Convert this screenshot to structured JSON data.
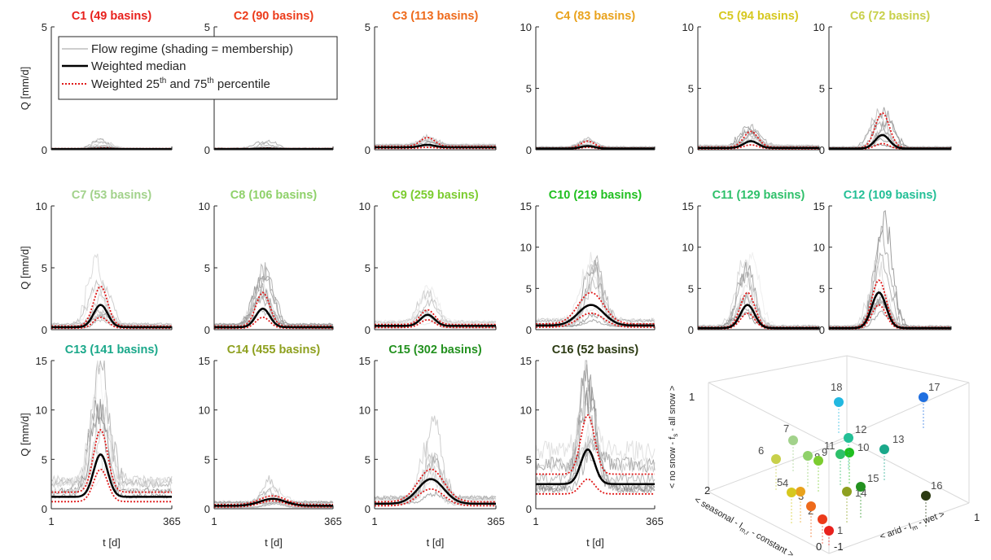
{
  "chart_data": {
    "type": "line",
    "legend": {
      "regime": "Flow regime (shading = membership)",
      "median": "Weighted median",
      "pct_a": "Weighted 25",
      "pct_sup1": "th",
      "pct_b": " and 75",
      "pct_sup2": "th",
      "pct_c": " percentile",
      "placement": "inside top of C1-C2 panels"
    },
    "ylabel": "Q [mm/d]",
    "xlabel": "t [d]",
    "x_ticks": [
      "1",
      "365"
    ],
    "xlim": [
      1,
      365
    ],
    "panels": [
      {
        "title": "C1 (49 basins)",
        "color": "#e8211d",
        "ymax": 5,
        "peak_day": 160,
        "median_peak": 0.05,
        "median_base": 0.03,
        "p25_peak": 0.03,
        "p75_peak": 0.08
      },
      {
        "title": "C2 (90 basins)",
        "color": "#ec3b1a",
        "ymax": 5,
        "peak_day": 160,
        "median_peak": 0.05,
        "median_base": 0.03,
        "p25_peak": 0.03,
        "p75_peak": 0.07
      },
      {
        "title": "C3 (113 basins)",
        "color": "#ee6a1b",
        "ymax": 5,
        "peak_day": 160,
        "median_peak": 0.2,
        "median_base": 0.1,
        "p25_peak": 0.1,
        "p75_peak": 0.5
      },
      {
        "title": "C4 (83 basins)",
        "color": "#e9a21c",
        "ymax": 10,
        "peak_day": 160,
        "median_peak": 0.3,
        "median_base": 0.1,
        "p25_peak": 0.2,
        "p75_peak": 0.7
      },
      {
        "title": "C5 (94 basins)",
        "color": "#d6c81f",
        "ymax": 10,
        "peak_day": 160,
        "median_peak": 0.7,
        "median_base": 0.15,
        "p25_peak": 0.4,
        "p75_peak": 1.5
      },
      {
        "title": "C6 (72 basins)",
        "color": "#c8d04a",
        "ymax": 10,
        "peak_day": 160,
        "median_peak": 1.2,
        "median_base": 0.1,
        "p25_peak": 0.5,
        "p75_peak": 3.0
      },
      {
        "title": "C7 (53 basins)",
        "color": "#a2d28b",
        "ymax": 10,
        "peak_day": 150,
        "median_peak": 2.0,
        "median_base": 0.2,
        "p25_peak": 1.0,
        "p75_peak": 3.5
      },
      {
        "title": "C8 (106 basins)",
        "color": "#8fd16a",
        "ymax": 10,
        "peak_day": 150,
        "median_peak": 1.7,
        "median_base": 0.2,
        "p25_peak": 1.0,
        "p75_peak": 3.0
      },
      {
        "title": "C9 (259 basins)",
        "color": "#7ccc2f",
        "ymax": 10,
        "peak_day": 160,
        "median_peak": 1.2,
        "median_base": 0.3,
        "p25_peak": 0.8,
        "p75_peak": 1.6
      },
      {
        "title": "C10 (219 basins)",
        "color": "#1fbf1f",
        "ymax": 15,
        "peak_day": 170,
        "median_peak": 3.0,
        "median_base": 0.5,
        "p25_peak": 2.0,
        "p75_peak": 4.5
      },
      {
        "title": "C11 (129 basins)",
        "color": "#2ec06a",
        "ymax": 15,
        "peak_day": 150,
        "median_peak": 3.0,
        "median_base": 0.2,
        "p25_peak": 2.0,
        "p75_peak": 4.5
      },
      {
        "title": "C12 (109 basins)",
        "color": "#23bf96",
        "ymax": 15,
        "peak_day": 150,
        "median_peak": 4.5,
        "median_base": 0.2,
        "p25_peak": 3.0,
        "p75_peak": 6.0
      },
      {
        "title": "C13 (141 basins)",
        "color": "#1aa88a",
        "ymax": 15,
        "peak_day": 150,
        "median_peak": 5.5,
        "median_base": 1.2,
        "p25_peak": 4.0,
        "p75_peak": 8.0
      },
      {
        "title": "C14 (455 basins)",
        "color": "#8ea01f",
        "ymax": 15,
        "peak_day": 180,
        "median_peak": 1.0,
        "median_base": 0.3,
        "p25_peak": 0.8,
        "p75_peak": 1.3
      },
      {
        "title": "C15 (302 basins)",
        "color": "#23911f",
        "ymax": 15,
        "peak_day": 170,
        "median_peak": 3.0,
        "median_base": 0.5,
        "p25_peak": 2.0,
        "p75_peak": 4.0
      },
      {
        "title": "C16 (52 basins)",
        "color": "#2b3a12",
        "ymax": 15,
        "peak_day": 160,
        "median_peak": 6.0,
        "median_base": 2.5,
        "p25_peak": 3.0,
        "p75_peak": 9.5
      }
    ],
    "inset_3d": {
      "type": "scatter",
      "axes": {
        "z_label_a": "< no snow - f",
        "z_sub": "s",
        "z_label_b": " - all snow >",
        "y_label_a": "< seasonal - I",
        "y_sub": "m,r",
        "y_label_b": " - constant >",
        "x_label_a": "< arid - I",
        "x_sub": "m",
        "x_label_b": " - wet >"
      },
      "ticks": {
        "z_top": "1",
        "y_left": "2",
        "y_mid": "0",
        "x_left": "-1",
        "x_right": "1"
      },
      "points": [
        {
          "label": "1",
          "color": "#e8211d"
        },
        {
          "label": "2",
          "color": "#ec3b1a"
        },
        {
          "label": "3",
          "color": "#ee6a1b"
        },
        {
          "label": "4",
          "color": "#e9a21c"
        },
        {
          "label": "5",
          "color": "#d6c81f"
        },
        {
          "label": "6",
          "color": "#c8d04a"
        },
        {
          "label": "7",
          "color": "#a2d28b"
        },
        {
          "label": "8",
          "color": "#8fd16a"
        },
        {
          "label": "9",
          "color": "#7ccc2f"
        },
        {
          "label": "10",
          "color": "#1fbf1f"
        },
        {
          "label": "11",
          "color": "#2ec06a"
        },
        {
          "label": "12",
          "color": "#23bf96"
        },
        {
          "label": "13",
          "color": "#1aa88a"
        },
        {
          "label": "14",
          "color": "#8ea01f"
        },
        {
          "label": "15",
          "color": "#23911f"
        },
        {
          "label": "16",
          "color": "#2b3a12"
        },
        {
          "label": "17",
          "color": "#1f6fe0"
        },
        {
          "label": "18",
          "color": "#22b8e0"
        }
      ]
    }
  }
}
